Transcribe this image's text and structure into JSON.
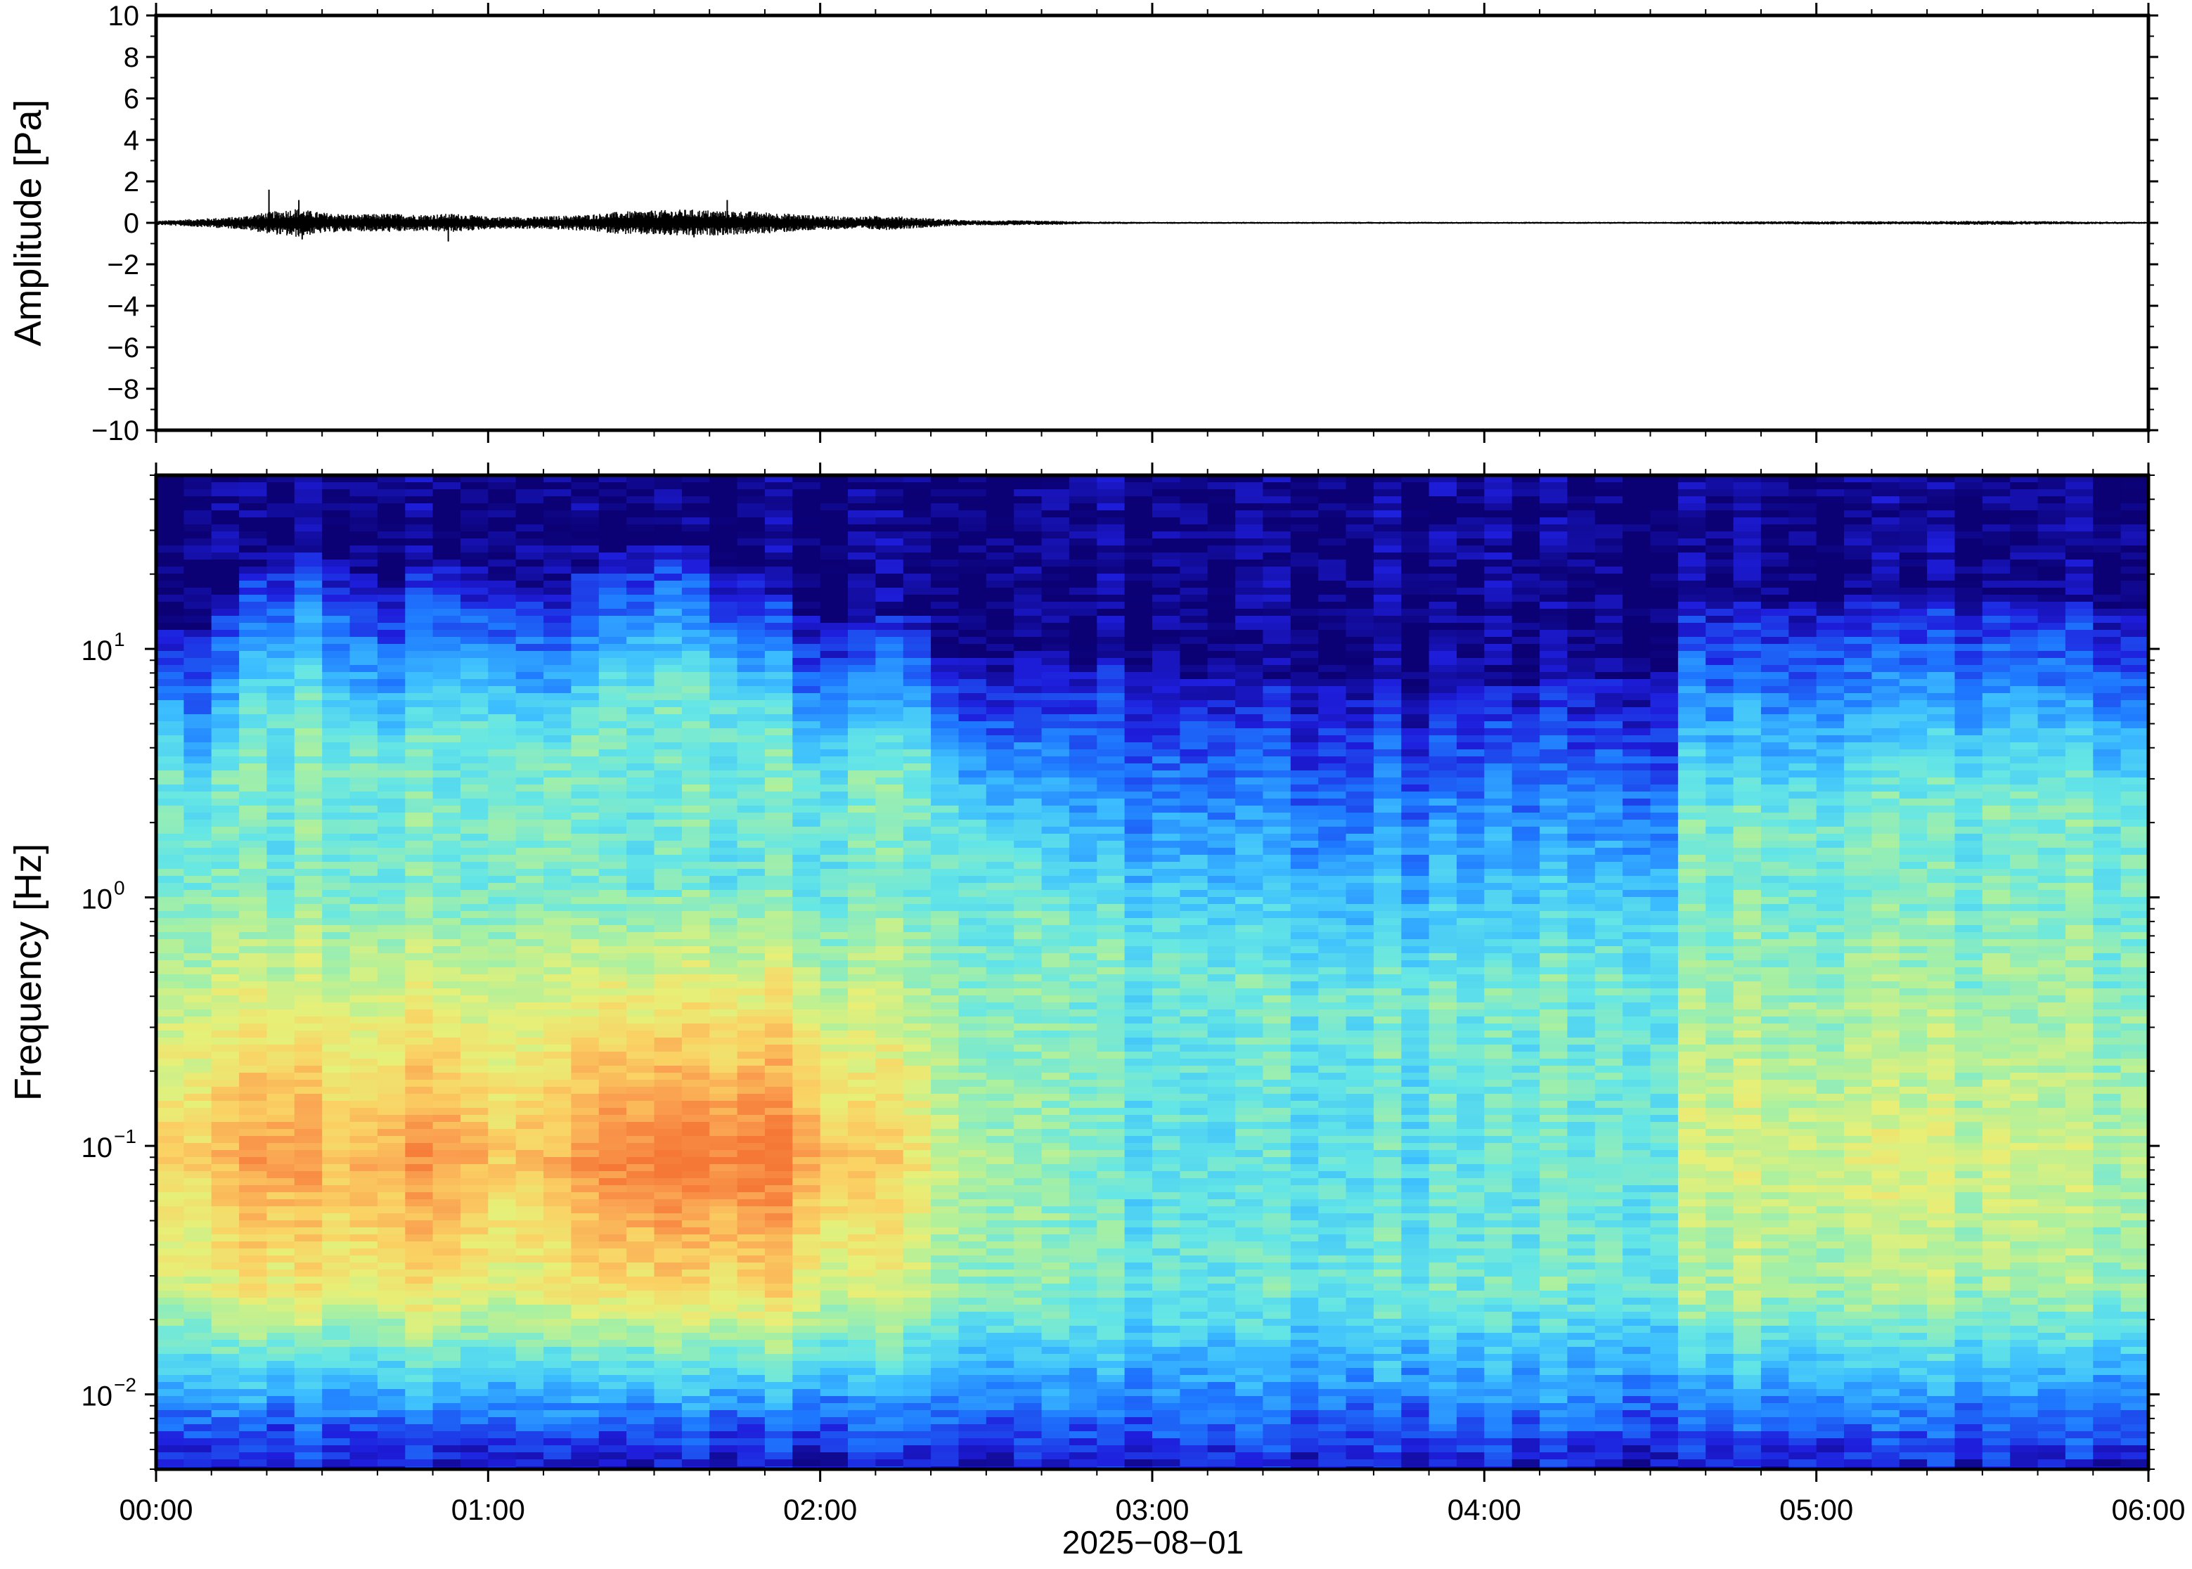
{
  "chart_data": [
    {
      "type": "line",
      "panel": "waveform",
      "ylabel": "Amplitude [Pa]",
      "ylim": [
        -10,
        10
      ],
      "yticks": [
        10,
        8,
        6,
        4,
        2,
        0,
        -2,
        -4,
        -6,
        -8,
        -10
      ],
      "ytick_labels": [
        "10",
        "8",
        "6",
        "4",
        "2",
        "0",
        "−2",
        "−4",
        "−6",
        "−8",
        "−10"
      ],
      "xlim_hours": [
        0,
        6
      ],
      "envelope": {
        "x_hours": [
          0.0,
          0.25,
          0.33,
          0.42,
          0.5,
          0.6,
          0.7,
          0.8,
          0.9,
          1.0,
          1.15,
          1.3,
          1.4,
          1.5,
          1.6,
          1.7,
          1.8,
          1.9,
          2.0,
          2.1,
          2.2,
          2.3,
          2.45,
          2.6,
          2.7,
          2.8,
          3.0,
          3.5,
          4.0,
          4.5,
          4.7,
          5.0,
          5.3,
          5.5,
          5.7,
          5.9,
          6.0
        ],
        "amplitude_pa": [
          0.1,
          0.3,
          0.5,
          0.7,
          0.5,
          0.4,
          0.45,
          0.4,
          0.45,
          0.3,
          0.3,
          0.4,
          0.55,
          0.6,
          0.65,
          0.6,
          0.55,
          0.45,
          0.35,
          0.3,
          0.35,
          0.25,
          0.12,
          0.12,
          0.1,
          0.06,
          0.05,
          0.05,
          0.05,
          0.05,
          0.07,
          0.08,
          0.08,
          0.1,
          0.08,
          0.06,
          0.05
        ]
      },
      "spikes": [
        {
          "x_hour": 0.34,
          "y": 1.6
        },
        {
          "x_hour": 0.43,
          "y": 1.1
        },
        {
          "x_hour": 0.44,
          "y": -0.8
        },
        {
          "x_hour": 0.88,
          "y": -0.9
        },
        {
          "x_hour": 1.72,
          "y": 1.1
        },
        {
          "x_hour": 1.62,
          "y": -0.7
        }
      ]
    },
    {
      "type": "heatmap",
      "panel": "spectrogram",
      "ylabel": "Frequency [Hz]",
      "yscale": "log",
      "ylim": [
        0.005,
        50
      ],
      "yticks": [
        {
          "value": 10,
          "base": "10",
          "exp": "1"
        },
        {
          "value": 1,
          "base": "10",
          "exp": "0"
        },
        {
          "value": 0.1,
          "base": "10",
          "exp": "−1"
        },
        {
          "value": 0.01,
          "base": "10",
          "exp": "−2"
        }
      ],
      "colormap": [
        "#0b0175",
        "#1e1edc",
        "#1e78ff",
        "#3cbeff",
        "#64e6e6",
        "#aaf0a0",
        "#e6f078",
        "#fad264",
        "#faa050",
        "#f57837"
      ],
      "ridge_time_hours": [
        0,
        0.15,
        0.25,
        0.4,
        0.5,
        0.7,
        0.9,
        1.05,
        1.2,
        1.35,
        1.5,
        1.65,
        1.8,
        1.95,
        2.1,
        2.3,
        2.35,
        2.7,
        3.0,
        3.5,
        4.0,
        4.5,
        4.55,
        4.6,
        5.0,
        5.5,
        6.0
      ],
      "ridge_upper_edge_hz": [
        12,
        11,
        20,
        26,
        24,
        18,
        22,
        19,
        16,
        24,
        28,
        24,
        20,
        14,
        13,
        14,
        9,
        9,
        8,
        7,
        7,
        8,
        8,
        15,
        15,
        17,
        14
      ],
      "ridge_green_edge_hz": [
        4,
        1.5,
        4,
        6,
        5,
        3,
        5,
        4,
        3,
        6,
        7,
        6,
        5,
        3,
        3,
        3.5,
        2,
        0.8,
        0.5,
        0.35,
        0.35,
        0.5,
        0.5,
        2,
        2,
        2.5,
        2
      ],
      "peak_band_hz": [
        0.04,
        0.2
      ],
      "peak_intensity": [
        0.75,
        0.75,
        0.85,
        0.9,
        0.8,
        0.85,
        0.9,
        0.75,
        0.8,
        0.95,
        1.0,
        0.95,
        1.0,
        0.9,
        0.75,
        0.7,
        0.6,
        0.5,
        0.4,
        0.4,
        0.4,
        0.45,
        0.45,
        0.6,
        0.6,
        0.6,
        0.55
      ]
    }
  ],
  "xaxis": {
    "ticks_hours": [
      0,
      1,
      2,
      3,
      4,
      5,
      6
    ],
    "tick_labels": [
      "00:00",
      "01:00",
      "02:00",
      "03:00",
      "04:00",
      "05:00",
      "06:00"
    ],
    "date_label": "2025−08−01"
  }
}
